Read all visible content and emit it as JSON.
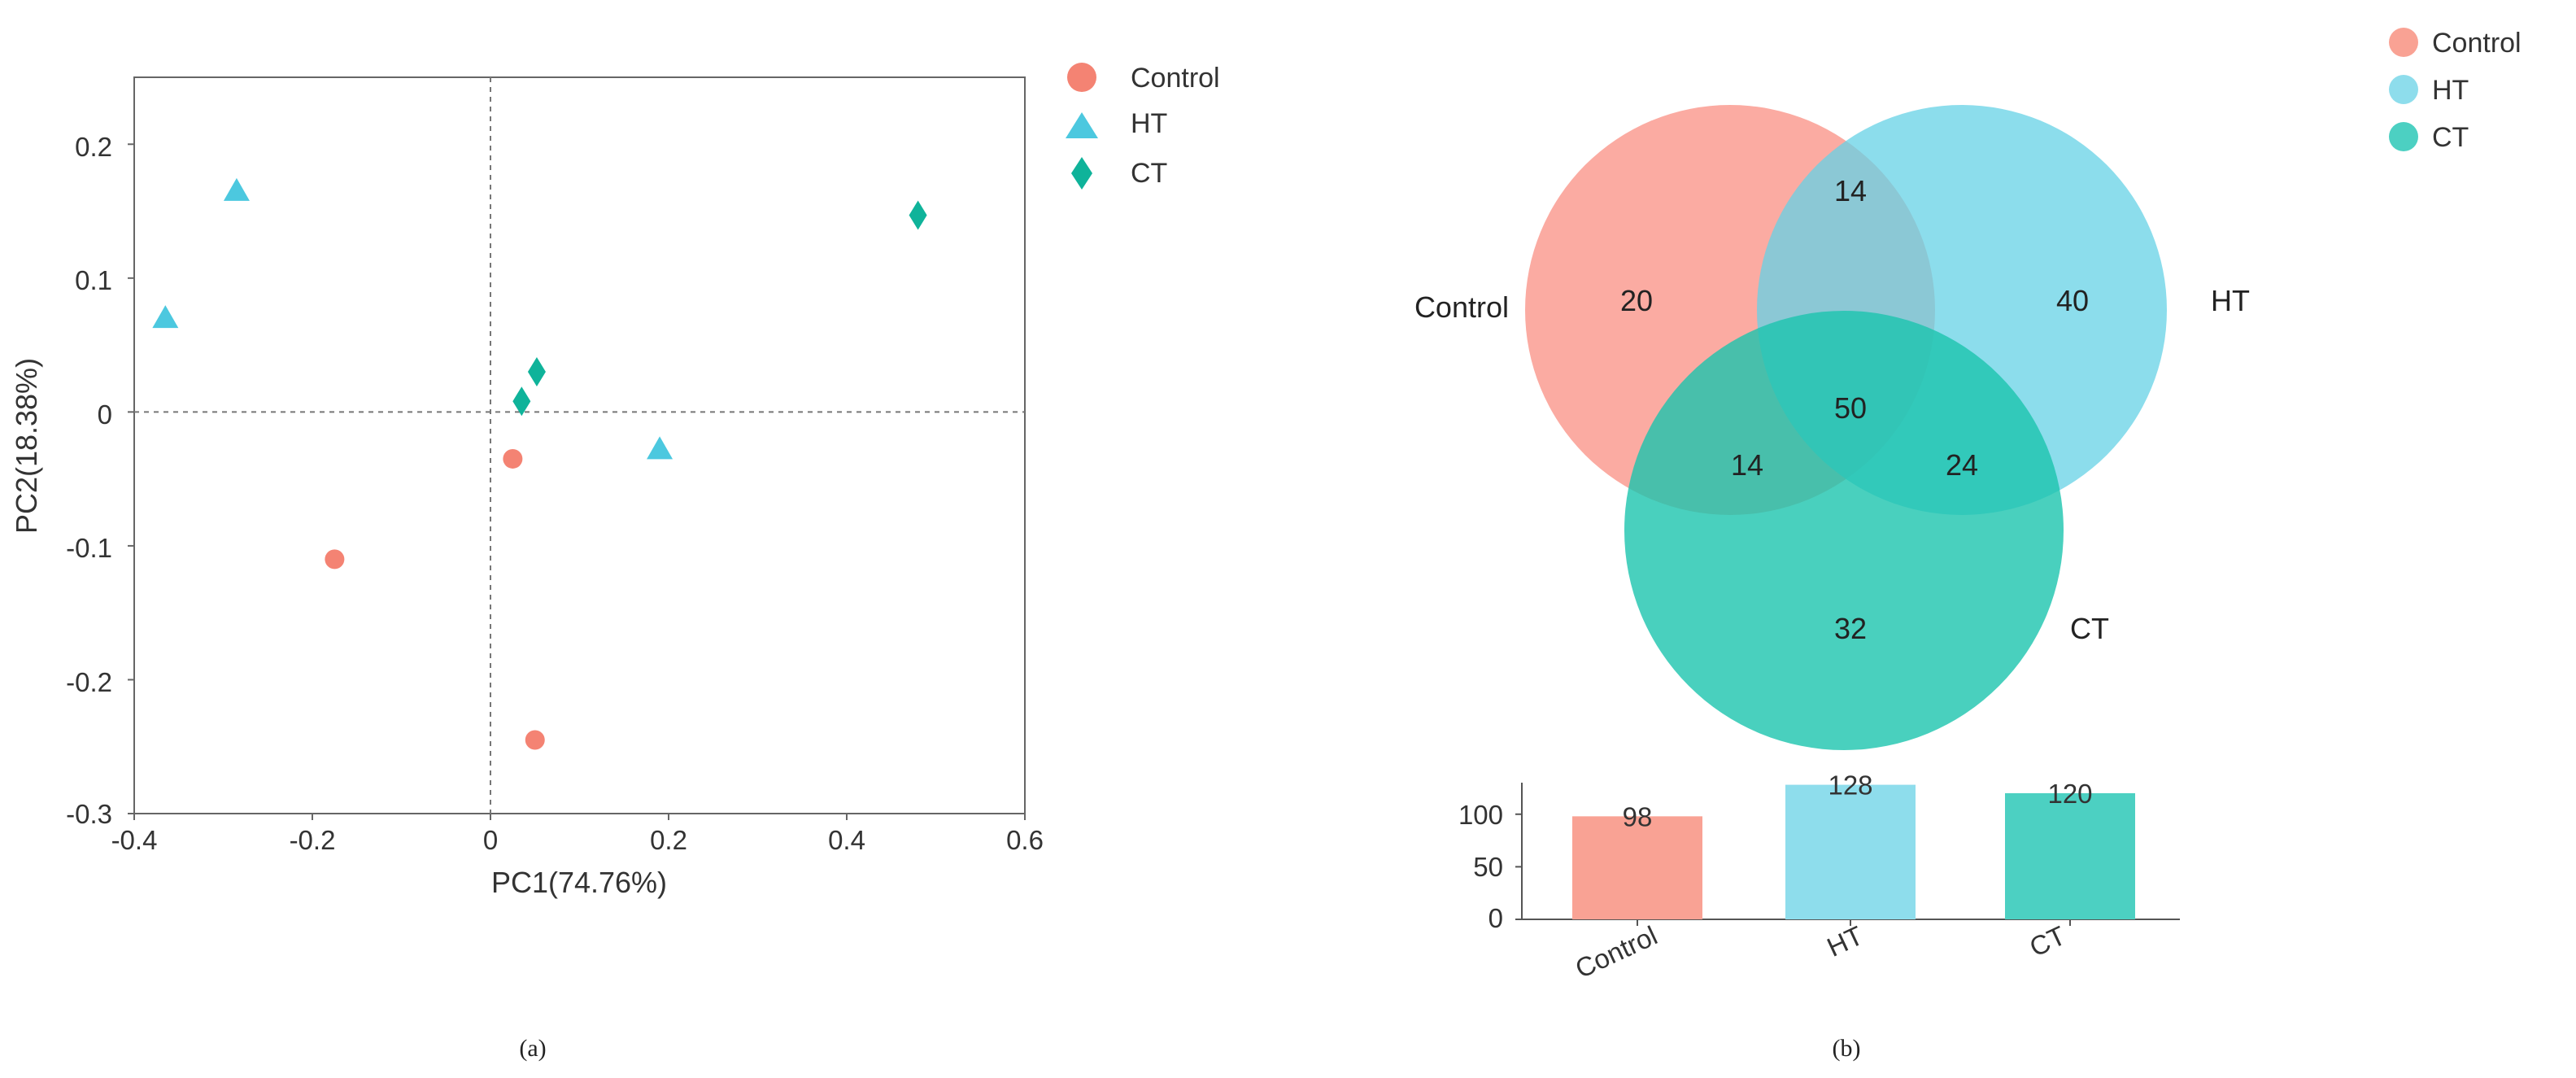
{
  "colors": {
    "control": "#F48373",
    "ht": "#4CC8DF",
    "ct": "#0FB39A",
    "venn_control": "#F9877A",
    "venn_ht": "#66D2E6",
    "venn_ct": "#1BC4AE",
    "bar_control": "#F9A294",
    "bar_ht": "#8EDDEC",
    "bar_ct": "#4CD0C2"
  },
  "chart_data": [
    {
      "type": "scatter",
      "panel": "(a)",
      "xlabel": "PC1(74.76%)",
      "ylabel": "PC2(18.38%)",
      "xlim": [
        -0.4,
        0.6
      ],
      "ylim": [
        -0.3,
        0.25
      ],
      "xticks": [
        "-0.4",
        "-0.2",
        "0",
        "0.2",
        "0.4",
        "0.6"
      ],
      "yticks": [
        "0.2",
        "0.1",
        "0",
        "-0.1",
        "-0.2",
        "-0.3"
      ],
      "reference_lines": "dashed at x=0 and y=0",
      "legend_position": "top-right outside",
      "series": [
        {
          "name": "Control",
          "marker": "circle",
          "points": [
            [
              0.025,
              -0.035
            ],
            [
              -0.175,
              -0.11
            ],
            [
              0.05,
              -0.245
            ]
          ]
        },
        {
          "name": "HT",
          "marker": "triangle",
          "points": [
            [
              -0.285,
              0.165
            ],
            [
              -0.365,
              0.07
            ],
            [
              0.19,
              -0.028
            ]
          ]
        },
        {
          "name": "CT",
          "marker": "diamond",
          "points": [
            [
              0.48,
              0.147
            ],
            [
              0.052,
              0.03
            ],
            [
              0.035,
              0.008
            ]
          ]
        }
      ]
    },
    {
      "type": "venn",
      "panel": "(b)",
      "sets": [
        "Control",
        "HT",
        "CT"
      ],
      "regions": {
        "control_only": 20,
        "ht_only": 40,
        "ct_only": 32,
        "control_ht": 14,
        "control_ct": 14,
        "ht_ct": 24,
        "all": 50
      },
      "legend": [
        "Control",
        "HT",
        "CT"
      ],
      "legend_position": "top-right"
    },
    {
      "type": "bar",
      "panel": "(b)",
      "categories": [
        "Control",
        "HT",
        "CT"
      ],
      "values": [
        98,
        128,
        120
      ],
      "yticks": [
        "100",
        "50",
        "0"
      ],
      "ylim": [
        0,
        130
      ]
    }
  ],
  "captions": {
    "a": "(a)",
    "b": "(b)"
  }
}
